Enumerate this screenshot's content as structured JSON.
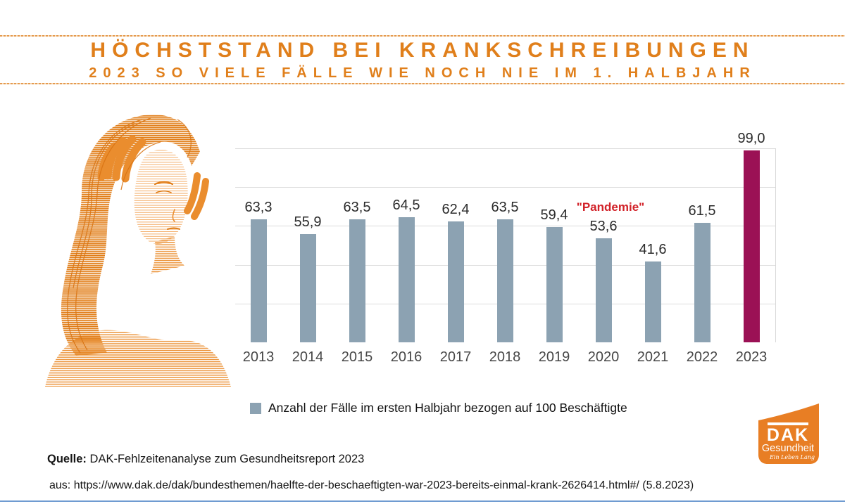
{
  "header": {
    "title": "HÖCHSTSTAND BEI KRANKSCHREIBUNGEN",
    "subtitle": "2023 SO VIELE FÄLLE WIE NOCH NIE IM 1. HALBJAHR",
    "accent_color": "#e07f1b"
  },
  "chart_data": {
    "type": "bar",
    "categories": [
      "2013",
      "2014",
      "2015",
      "2016",
      "2017",
      "2018",
      "2019",
      "2020",
      "2021",
      "2022",
      "2023"
    ],
    "values": [
      63.3,
      55.9,
      63.5,
      64.5,
      62.4,
      63.5,
      59.4,
      53.6,
      41.6,
      61.5,
      99.0
    ],
    "value_labels": [
      "63,3",
      "55,9",
      "63,5",
      "64,5",
      "62,4",
      "63,5",
      "59,4",
      "53,6",
      "41,6",
      "61,5",
      "99,0"
    ],
    "title": "",
    "xlabel": "",
    "ylabel": "",
    "ylim": [
      0,
      100
    ],
    "grid": true,
    "grid_step": 20,
    "bar_color": "#8ca2b2",
    "highlight_color": "#9b1155",
    "highlight_index": 10,
    "annotation": {
      "text": "\"Pandemie\"",
      "category": "2020",
      "color": "#d2232a"
    },
    "legend": {
      "label": "Anzahl der Fälle im ersten Halbjahr bezogen auf 100 Beschäftigte",
      "position": "bottom",
      "swatch_color": "#8ca2b2"
    }
  },
  "footer": {
    "source_label": "Quelle:",
    "source_text": " DAK-Fehlzeitenanalyse zum Gesundheitsreport 2023",
    "reference": "aus: https://www.dak.de/dak/bundesthemen/haelfte-der-beschaeftigten-war-2023-bereits-einmal-krank-2626414.html#/ (5.8.2023)"
  },
  "logo": {
    "brand": "DAK",
    "subbrand": "Gesundheit",
    "tagline": "Ein Leben Lang",
    "color": "#e87e24"
  }
}
